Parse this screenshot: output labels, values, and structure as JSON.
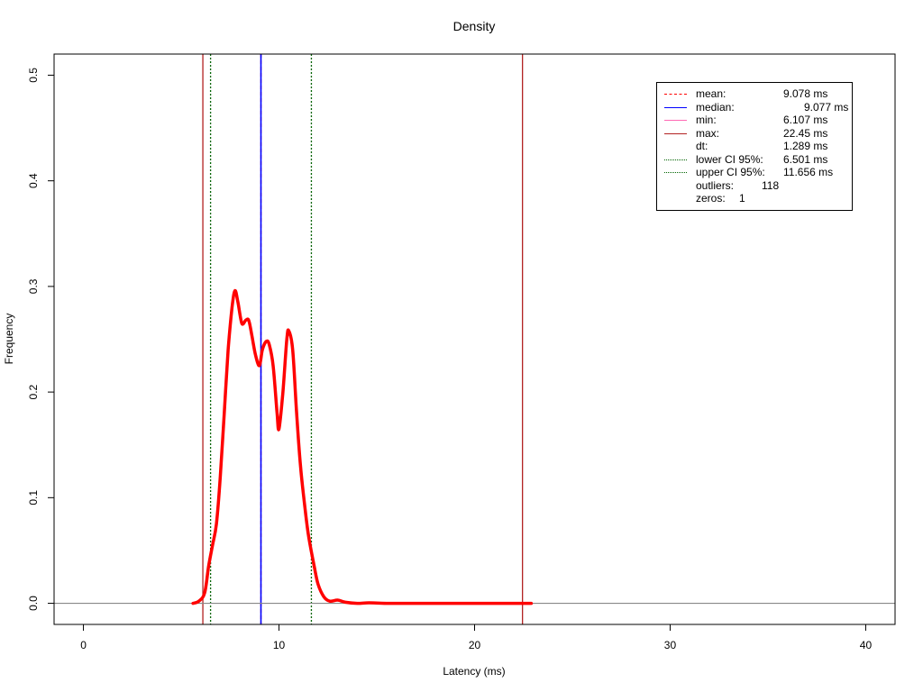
{
  "chart_data": {
    "type": "line",
    "title": "Density",
    "xlabel": "Latency (ms)",
    "ylabel": "Frequency",
    "xlim": [
      -1.5,
      41.5
    ],
    "ylim": [
      -0.02,
      0.52
    ],
    "xticks": [
      "0",
      "10",
      "20",
      "30",
      "40"
    ],
    "xtick_values": [
      0,
      10,
      20,
      30,
      40
    ],
    "yticks": [
      "0.0",
      "0.1",
      "0.2",
      "0.3",
      "0.4",
      "0.5"
    ],
    "ytick_values": [
      0.0,
      0.1,
      0.2,
      0.3,
      0.4,
      0.5
    ],
    "series": [
      {
        "color": "#ff0000",
        "x": [
          5.6,
          5.9,
          6.2,
          6.4,
          6.6,
          6.8,
          7.0,
          7.2,
          7.4,
          7.6,
          7.75,
          7.9,
          8.1,
          8.3,
          8.45,
          8.6,
          8.8,
          9.0,
          9.15,
          9.35,
          9.5,
          9.7,
          9.9,
          10.0,
          10.2,
          10.4,
          10.5,
          10.7,
          10.9,
          11.1,
          11.3,
          11.5,
          11.8,
          12.0,
          12.3,
          12.6,
          13.0,
          13.4,
          14.0,
          14.6,
          15.5,
          17.0,
          19.0,
          21.0,
          22.9
        ],
        "y": [
          0.0,
          0.002,
          0.01,
          0.035,
          0.055,
          0.075,
          0.12,
          0.18,
          0.24,
          0.28,
          0.296,
          0.285,
          0.265,
          0.268,
          0.268,
          0.255,
          0.235,
          0.225,
          0.24,
          0.248,
          0.245,
          0.225,
          0.18,
          0.165,
          0.2,
          0.25,
          0.258,
          0.24,
          0.18,
          0.13,
          0.095,
          0.065,
          0.035,
          0.018,
          0.006,
          0.002,
          0.003,
          0.001,
          0.0,
          0.0005,
          0.0,
          0.0,
          0.0,
          0.0,
          0.0
        ]
      }
    ],
    "vlines": [
      {
        "name": "min",
        "x": 6.107,
        "color": "#b22222",
        "style": "solid"
      },
      {
        "name": "lower CI 95%",
        "x": 6.501,
        "color": "#006400",
        "style": "dotted"
      },
      {
        "name": "mean",
        "x": 9.078,
        "color": "#ff0000",
        "style": "dashed"
      },
      {
        "name": "median",
        "x": 9.077,
        "color": "#0000ff",
        "style": "solid"
      },
      {
        "name": "upper CI 95%",
        "x": 11.656,
        "color": "#006400",
        "style": "dotted"
      },
      {
        "name": "max",
        "x": 22.45,
        "color": "#b22222",
        "style": "solid"
      }
    ],
    "hline": {
      "y": 0,
      "color": "#888888"
    },
    "grid": false,
    "legend_position": "top-right",
    "legend": [
      {
        "label": "mean:",
        "value": "9.078 ms",
        "color": "#ff0000",
        "style": "dashed"
      },
      {
        "label": "median:",
        "value": "9.077 ms",
        "color": "#0000ff",
        "style": "solid"
      },
      {
        "label": "min:",
        "value": "6.107 ms",
        "color": "#ff69b4",
        "style": "solid"
      },
      {
        "label": "max:",
        "value": "22.45 ms",
        "color": "#b22222",
        "style": "solid"
      },
      {
        "label": "dt:",
        "value": "1.289 ms",
        "color": "",
        "style": "none"
      },
      {
        "label": "lower CI 95%:",
        "value": "6.501 ms",
        "color": "#006400",
        "style": "dotted"
      },
      {
        "label": "upper CI 95%:",
        "value": "11.656 ms",
        "color": "#006400",
        "style": "dotted"
      },
      {
        "label": "outliers:",
        "value": "118",
        "color": "",
        "style": "none"
      },
      {
        "label": "zeros:",
        "value": "1",
        "color": "",
        "style": "none"
      }
    ]
  }
}
